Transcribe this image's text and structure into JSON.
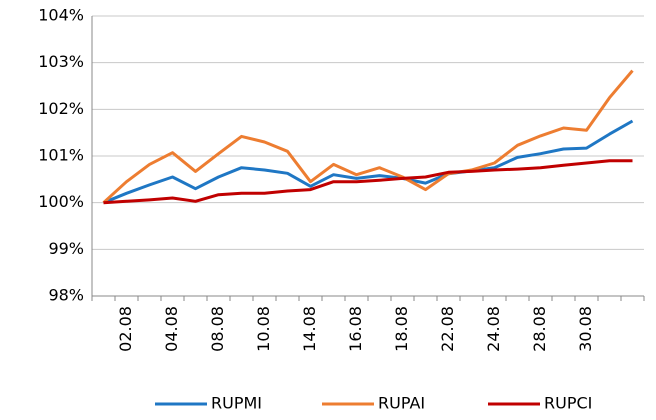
{
  "chart_data": {
    "type": "line",
    "categories": [
      null,
      "02.08",
      null,
      "04.08",
      null,
      "08.08",
      null,
      "10.08",
      null,
      "14.08",
      null,
      "16.08",
      null,
      "18.08",
      null,
      "22.08",
      null,
      "24.08",
      null,
      "28.08",
      null,
      "30.08",
      null,
      null
    ],
    "series": [
      {
        "name": "RUPMI",
        "color": "#1f77c4",
        "values": [
          100,
          100.2,
          100.38,
          100.55,
          100.3,
          100.55,
          100.75,
          100.7,
          100.63,
          100.35,
          100.6,
          100.52,
          100.58,
          100.52,
          100.42,
          100.62,
          100.68,
          100.75,
          100.97,
          101.05,
          101.15,
          101.17,
          101.47,
          101.75
        ]
      },
      {
        "name": "RUPAI",
        "color": "#ed7d31",
        "values": [
          100,
          100.45,
          100.82,
          101.07,
          100.67,
          101.05,
          101.42,
          101.3,
          101.1,
          100.45,
          100.82,
          100.6,
          100.75,
          100.55,
          100.28,
          100.62,
          100.7,
          100.85,
          101.23,
          101.43,
          101.6,
          101.55,
          102.25,
          102.83
        ]
      },
      {
        "name": "RUPCI",
        "color": "#c00000",
        "values": [
          100,
          100.03,
          100.06,
          100.1,
          100.03,
          100.17,
          100.2,
          100.2,
          100.25,
          100.28,
          100.45,
          100.45,
          100.48,
          100.52,
          100.55,
          100.65,
          100.67,
          100.7,
          100.72,
          100.75,
          100.8,
          100.85,
          100.9,
          100.9
        ]
      }
    ],
    "ylim": [
      98,
      104
    ],
    "yticks": [
      {
        "value": 98,
        "label": "98%"
      },
      {
        "value": 99,
        "label": "99%"
      },
      {
        "value": 100,
        "label": "100%"
      },
      {
        "value": 101,
        "label": "101%"
      },
      {
        "value": 102,
        "label": "102%"
      },
      {
        "value": 103,
        "label": "103%"
      },
      {
        "value": 104,
        "label": "104%"
      }
    ],
    "grid": true,
    "legend": "bottom"
  }
}
